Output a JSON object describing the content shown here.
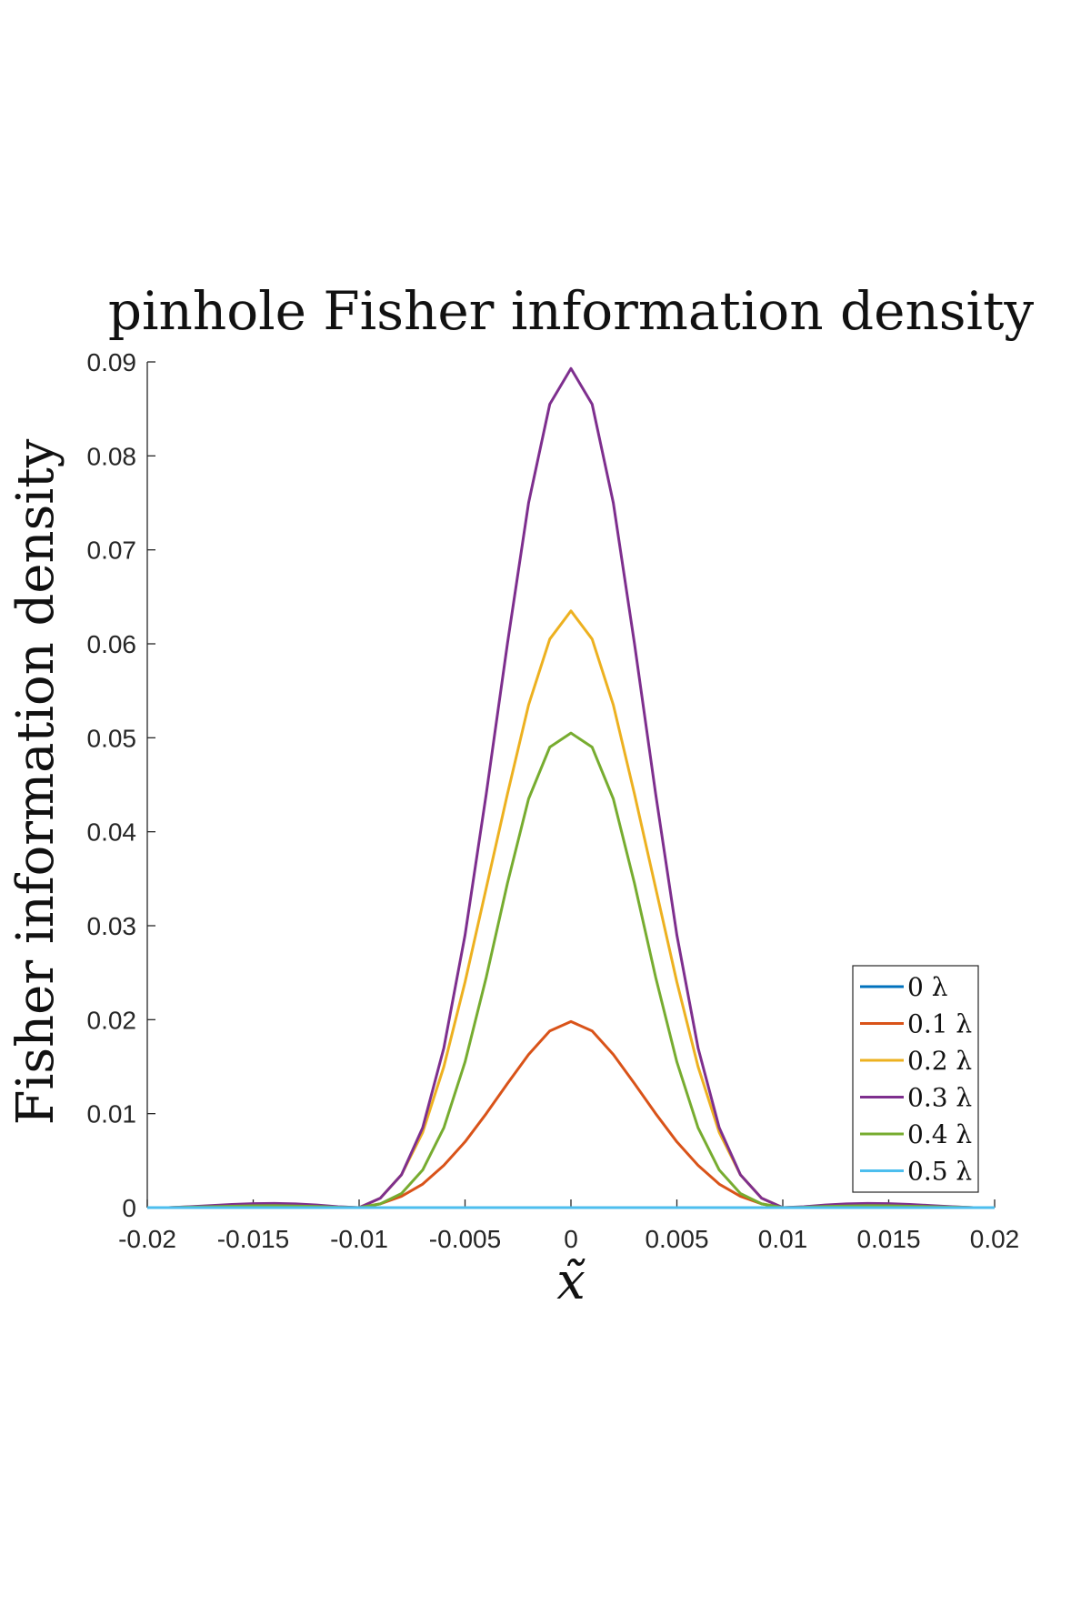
{
  "chart_data": {
    "type": "line",
    "title": "pinhole Fisher information density",
    "xlabel": "x̃",
    "ylabel": "Fisher information density",
    "xlim": [
      -0.02,
      0.02
    ],
    "ylim": [
      0,
      0.09
    ],
    "x_ticks": [
      "-0.02",
      "-0.015",
      "-0.01",
      "-0.005",
      "0",
      "0.005",
      "0.01",
      "0.015",
      "0.02"
    ],
    "y_ticks": [
      "0",
      "0.01",
      "0.02",
      "0.03",
      "0.04",
      "0.05",
      "0.06",
      "0.07",
      "0.08",
      "0.09"
    ],
    "grid": false,
    "legend_position": "bottom-right",
    "x": [
      -0.02,
      -0.019,
      -0.018,
      -0.017,
      -0.016,
      -0.015,
      -0.014,
      -0.013,
      -0.012,
      -0.011,
      -0.01,
      -0.009,
      -0.008,
      -0.007,
      -0.006,
      -0.005,
      -0.004,
      -0.003,
      -0.002,
      -0.001,
      0,
      0.001,
      0.002,
      0.003,
      0.004,
      0.005,
      0.006,
      0.007,
      0.008,
      0.009,
      0.01,
      0.011,
      0.012,
      0.013,
      0.014,
      0.015,
      0.016,
      0.017,
      0.018,
      0.019,
      0.02
    ],
    "series": [
      {
        "name": "0 λ",
        "color": "#0072bd",
        "values": [
          0,
          0,
          0,
          0,
          0,
          0,
          0,
          0,
          0,
          0,
          0,
          0,
          0,
          0,
          0,
          0,
          0,
          0,
          0,
          0,
          0,
          0,
          0,
          0,
          0,
          0,
          0,
          0,
          0,
          0,
          0,
          0,
          0,
          0,
          0,
          0,
          0,
          0,
          0,
          0,
          0
        ]
      },
      {
        "name": "0.1 λ",
        "color": "#d95319",
        "values": [
          0,
          0,
          3e-05,
          6e-05,
          9e-05,
          0.00011,
          0.00011,
          9e-05,
          6e-05,
          2e-05,
          0,
          0.0004,
          0.0012,
          0.0025,
          0.0045,
          0.007,
          0.01,
          0.0132,
          0.0163,
          0.0188,
          0.0198,
          0.0188,
          0.0163,
          0.0132,
          0.01,
          0.007,
          0.0045,
          0.0025,
          0.0012,
          0.0004,
          0,
          2e-05,
          6e-05,
          9e-05,
          0.00011,
          0.00011,
          9e-05,
          6e-05,
          3e-05,
          0,
          0
        ]
      },
      {
        "name": "0.2 λ",
        "color": "#edb120",
        "values": [
          0,
          0,
          8e-05,
          0.00016,
          0.00025,
          0.0003,
          0.00031,
          0.00027,
          0.00018,
          6e-05,
          0,
          0.001,
          0.0035,
          0.008,
          0.015,
          0.024,
          0.034,
          0.044,
          0.0535,
          0.0605,
          0.0635,
          0.0605,
          0.0535,
          0.044,
          0.034,
          0.024,
          0.015,
          0.008,
          0.0035,
          0.001,
          0,
          6e-05,
          0.00018,
          0.00027,
          0.00031,
          0.0003,
          0.00025,
          0.00016,
          8e-05,
          0,
          0
        ]
      },
      {
        "name": "0.3 λ",
        "color": "#7e2f8e",
        "values": [
          0,
          0,
          0.0001,
          0.00022,
          0.00034,
          0.00042,
          0.00045,
          0.0004,
          0.00028,
          0.0001,
          0,
          0.001,
          0.0035,
          0.0085,
          0.017,
          0.029,
          0.044,
          0.06,
          0.075,
          0.0855,
          0.0893,
          0.0855,
          0.075,
          0.06,
          0.044,
          0.029,
          0.017,
          0.0085,
          0.0035,
          0.001,
          0,
          0.0001,
          0.00028,
          0.0004,
          0.00045,
          0.00042,
          0.00034,
          0.00022,
          0.0001,
          0,
          0
        ]
      },
      {
        "name": "0.4 λ",
        "color": "#77ac30",
        "values": [
          0,
          0,
          5e-05,
          0.0001,
          0.00015,
          0.00019,
          0.0002,
          0.00017,
          0.00012,
          4e-05,
          0,
          0.0004,
          0.0015,
          0.004,
          0.0085,
          0.0155,
          0.0245,
          0.0345,
          0.0435,
          0.049,
          0.0505,
          0.049,
          0.0435,
          0.0345,
          0.0245,
          0.0155,
          0.0085,
          0.004,
          0.0015,
          0.0004,
          0,
          4e-05,
          0.00012,
          0.00017,
          0.0002,
          0.00019,
          0.00015,
          0.0001,
          5e-05,
          0,
          0
        ]
      },
      {
        "name": "0.5 λ",
        "color": "#4dbeee",
        "values": [
          0,
          0,
          0,
          0,
          0,
          0,
          0,
          0,
          0,
          0,
          0,
          0,
          0,
          0,
          0,
          0,
          0,
          0,
          0,
          0,
          0,
          0,
          0,
          0,
          0,
          0,
          0,
          0,
          0,
          0,
          0,
          0,
          0,
          0,
          0,
          0,
          0,
          0,
          0,
          0,
          0
        ]
      }
    ]
  }
}
